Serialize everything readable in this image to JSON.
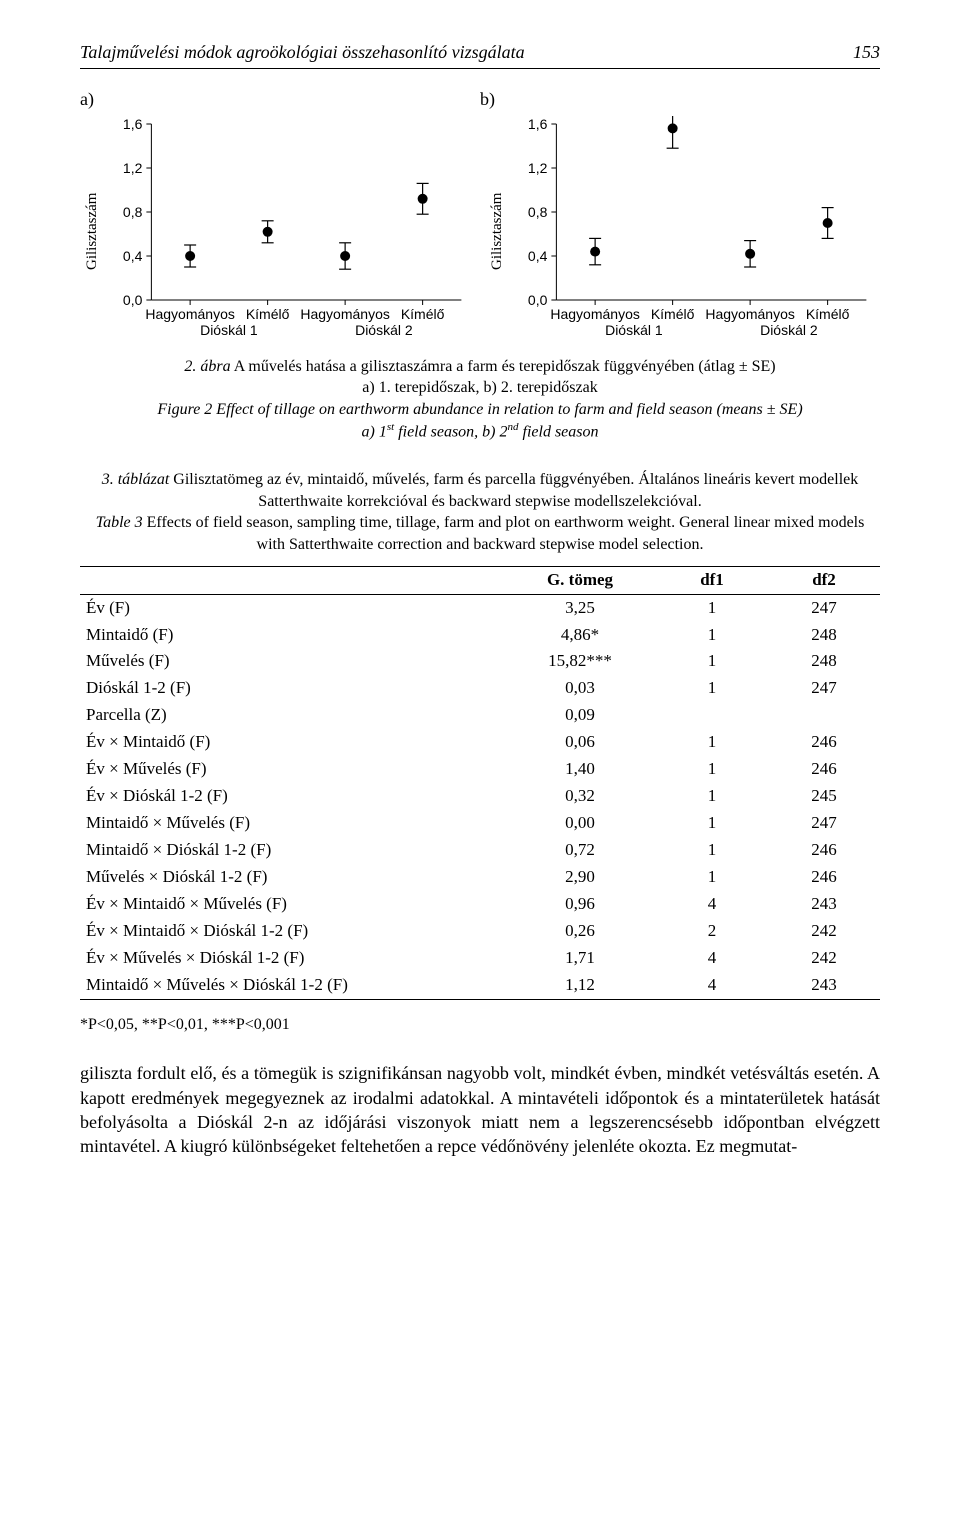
{
  "header": {
    "running_title": "Talajművelési módok agroökológiai összehasonlító vizsgálata",
    "page_number": "153"
  },
  "figure": {
    "panel_a_label": "a)",
    "panel_b_label": "b)",
    "ylabel": "Gilisztaszám",
    "panels": {
      "a": {
        "type": "error-point",
        "xcats": [
          "Hagyományos",
          "Kímélő",
          "Hagyományos",
          "Kímélő"
        ],
        "xsub": [
          "Dióskál 1",
          "",
          "Dióskál 2",
          ""
        ],
        "y": [
          0.4,
          0.62,
          0.4,
          0.92
        ],
        "ylo": [
          0.3,
          0.52,
          0.28,
          0.78
        ],
        "yhi": [
          0.5,
          0.72,
          0.52,
          1.06
        ],
        "yticks": [
          "0,0",
          "0,4",
          "0,8",
          "1,2",
          "1,6"
        ],
        "ymin": 0.0,
        "ymax": 1.6
      },
      "b": {
        "type": "error-point",
        "xcats": [
          "Hagyományos",
          "Kímélő",
          "Hagyományos",
          "Kímélő"
        ],
        "xsub": [
          "Dióskál 1",
          "",
          "Dióskál 2",
          ""
        ],
        "y": [
          0.44,
          1.56,
          0.42,
          0.7
        ],
        "ylo": [
          0.32,
          1.38,
          0.3,
          0.56
        ],
        "yhi": [
          0.56,
          1.72,
          0.54,
          0.84
        ],
        "yticks": [
          "0,0",
          "0,4",
          "0,8",
          "1,2",
          "1,6"
        ],
        "ymin": 0.0,
        "ymax": 1.6
      }
    },
    "style": {
      "point_fill": "#000000",
      "point_radius": 5,
      "err_stroke": "#000000",
      "err_width": 1.2,
      "cap_halfwidth": 6,
      "axis_stroke": "#000000",
      "tick_len": 5,
      "tick_fontsize": 14,
      "xlabel_fontsize": 14
    },
    "caption_hu_prefix": "2. ábra",
    "caption_hu": " A művelés hatása a gilisztaszámra a farm és terepidőszak függvényében (átlag ± SE)",
    "caption_hu_line2": "a) 1. terepidőszak, b) 2. terepidőszak",
    "caption_en_prefix": "Figure 2",
    "caption_en": " Effect of tillage on earthworm abundance in relation to farm and field season (means ± SE)",
    "caption_en_line2_a": "a) 1",
    "caption_en_line2_b": " field season, b) 2",
    "caption_en_line2_c": " field season"
  },
  "table": {
    "caption_hu_prefix": "3. táblázat",
    "caption_hu": " Gilisztatömeg az év, mintaidő, művelés, farm és parcella függvényében. Általános lineáris kevert modellek Satterthwaite korrekcióval és backward stepwise modellszelekcióval.",
    "caption_en_prefix": "Table 3",
    "caption_en": " Effects of field season, sampling time, tillage, farm and plot on earthworm weight. General linear mixed models with Satterthwaite correction and backward stepwise model selection.",
    "columns": [
      "",
      "G. tömeg",
      "df1",
      "df2"
    ],
    "rows": [
      [
        "Év (F)",
        "3,25",
        "1",
        "247"
      ],
      [
        "Mintaidő (F)",
        "4,86*",
        "1",
        "248"
      ],
      [
        "Művelés (F)",
        "15,82***",
        "1",
        "248"
      ],
      [
        "Dióskál 1-2 (F)",
        "0,03",
        "1",
        "247"
      ],
      [
        "Parcella (Z)",
        "0,09",
        "",
        ""
      ],
      [
        "Év × Mintaidő (F)",
        "0,06",
        "1",
        "246"
      ],
      [
        "Év × Művelés (F)",
        "1,40",
        "1",
        "246"
      ],
      [
        "Év × Dióskál 1-2 (F)",
        "0,32",
        "1",
        "245"
      ],
      [
        "Mintaidő × Művelés (F)",
        "0,00",
        "1",
        "247"
      ],
      [
        "Mintaidő × Dióskál 1-2 (F)",
        "0,72",
        "1",
        "246"
      ],
      [
        "Művelés × Dióskál 1-2 (F)",
        "2,90",
        "1",
        "246"
      ],
      [
        "Év × Mintaidő × Művelés (F)",
        "0,96",
        "4",
        "243"
      ],
      [
        "Év × Mintaidő × Dióskál 1-2 (F)",
        "0,26",
        "2",
        "242"
      ],
      [
        "Év × Művelés × Dióskál 1-2 (F)",
        "1,71",
        "4",
        "242"
      ],
      [
        "Mintaidő × Művelés × Dióskál 1-2 (F)",
        "1,12",
        "4",
        "243"
      ]
    ],
    "significance": "*P<0,05, **P<0,01, ***P<0,001"
  },
  "body": {
    "paragraph": "giliszta fordult elő, és a tömegük is szignifikánsan nagyobb volt, mindkét évben, mindkét vetésváltás esetén. A kapott eredmények megegyeznek az irodalmi adatokkal. A mintavételi időpontok és a mintaterületek hatását befolyásolta a Dióskál 2-n az időjárási viszonyok miatt nem a legszerencsésebb időpontban elvégzett mintavétel. A kiugró különbségeket feltehetően a repce védőnövény jelenléte okozta. Ez megmutat-"
  }
}
